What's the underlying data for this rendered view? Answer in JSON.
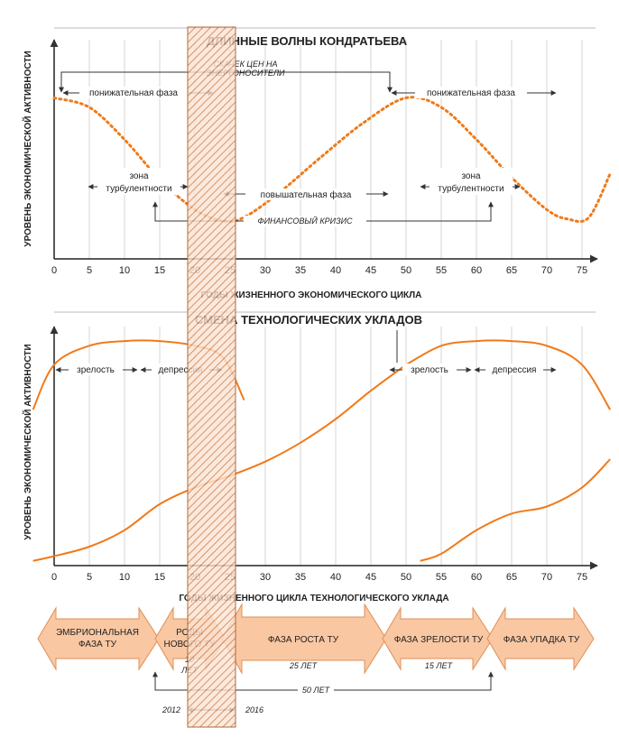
{
  "chart_data": [
    {
      "type": "line",
      "title": "ДЛИННЫЕ ВОЛНЫ КОНДРАТЬЕВА",
      "xlabel": "ГОДЫ ЖИЗНЕННОГО ЭКОНОМИЧЕСКОГО ЦИКЛА",
      "ylabel": "УРОВЕНЬ ЭКОНОМИЧЕСКОЙ АКТИВНОСТИ",
      "xlim": [
        0,
        80
      ],
      "xticks": [
        0,
        5,
        10,
        15,
        20,
        25,
        30,
        35,
        40,
        45,
        50,
        55,
        60,
        65,
        70,
        75
      ],
      "grid": "vertical",
      "series": [
        {
          "style": "dotted",
          "color": "#f07a1a",
          "x": [
            0,
            5,
            10,
            15,
            20,
            24,
            27,
            32,
            38,
            44,
            50,
            55,
            60,
            65,
            70,
            73,
            76,
            79
          ],
          "y": [
            0.85,
            0.8,
            0.63,
            0.42,
            0.26,
            0.2,
            0.22,
            0.35,
            0.54,
            0.72,
            0.85,
            0.8,
            0.63,
            0.43,
            0.26,
            0.21,
            0.22,
            0.45
          ]
        }
      ],
      "annotations": {
        "price_jump": "СКАЧЕК ЦЕН НА ЭНЕРГОНОСИТЕЛИ",
        "down_phase_1": "понижательная фаза",
        "down_phase_2": "понижательная фаза",
        "up_phase": "повышательная фаза",
        "turbulence_1": [
          "зона",
          "турбулентности"
        ],
        "turbulence_2": [
          "зона",
          "турбулентности"
        ],
        "crisis": "ФИНАНСОВЫЙ КРИЗИС"
      }
    },
    {
      "type": "line",
      "title": "СМЕНА ТЕХНОЛОГИЧЕСКИХ УКЛАДОВ",
      "xlabel": "ГОДЫ ЖИЗНЕННОГО ЦИКЛА ТЕХНОЛОГИЧЕСКОГО УКЛАДА",
      "ylabel": "УРОВЕНЬ ЭКОНОМИЧЕСКОЙ АКТИВНОСТИ",
      "xlim": [
        0,
        80
      ],
      "xticks": [
        0,
        5,
        10,
        15,
        20,
        25,
        30,
        35,
        40,
        45,
        50,
        55,
        60,
        65,
        70,
        75
      ],
      "grid": "vertical",
      "series": [
        {
          "color": "#f07a1a",
          "x": [
            -3,
            0,
            5,
            10,
            15,
            20,
            24,
            27
          ],
          "y": [
            0.66,
            0.85,
            0.93,
            0.95,
            0.95,
            0.93,
            0.88,
            0.7
          ]
        },
        {
          "color": "#f07a1a",
          "x": [
            -3,
            0,
            5,
            10,
            15,
            20,
            25,
            30,
            35,
            40,
            45,
            50
          ],
          "y": [
            0.02,
            0.04,
            0.08,
            0.15,
            0.26,
            0.33,
            0.38,
            0.44,
            0.52,
            0.62,
            0.74,
            0.85
          ]
        },
        {
          "color": "#f07a1a",
          "x": [
            50,
            55,
            60,
            65,
            70,
            75,
            79
          ],
          "y": [
            0.85,
            0.93,
            0.95,
            0.95,
            0.93,
            0.85,
            0.66
          ]
        },
        {
          "color": "#f07a1a",
          "x": [
            52,
            55,
            60,
            65,
            70,
            75,
            79
          ],
          "y": [
            0.02,
            0.05,
            0.15,
            0.22,
            0.25,
            0.33,
            0.45
          ]
        }
      ],
      "annotations": {
        "maturity_1": "зрелость",
        "depression_1": "депрессия",
        "maturity_2": "зрелость",
        "depression_2": "депрессия"
      }
    }
  ],
  "phases": [
    {
      "label": [
        "ЭМБРИОНАЛЬНАЯ",
        "ФАЗА ТУ"
      ]
    },
    {
      "label": [
        "РОДЫ",
        "НОВОГО ТУ"
      ],
      "duration": [
        "10",
        "ЛЕТ"
      ]
    },
    {
      "label": [
        "ФАЗА РОСТА ТУ"
      ],
      "duration": [
        "25 ЛЕТ"
      ]
    },
    {
      "label": [
        "ФАЗА ЗРЕЛОСТИ ТУ"
      ],
      "duration": [
        "15 ЛЕТ"
      ]
    },
    {
      "label": [
        "ФАЗА УПАДКА ТУ"
      ]
    }
  ],
  "total_span": "50 ЛЕТ",
  "years": {
    "start": "2012",
    "end": "2016"
  },
  "colors": {
    "curve": "#f07a1a",
    "arrow_fill": "#f9c7a2",
    "arrow_stroke": "#e08f55",
    "hatch": "#c77b4a"
  }
}
